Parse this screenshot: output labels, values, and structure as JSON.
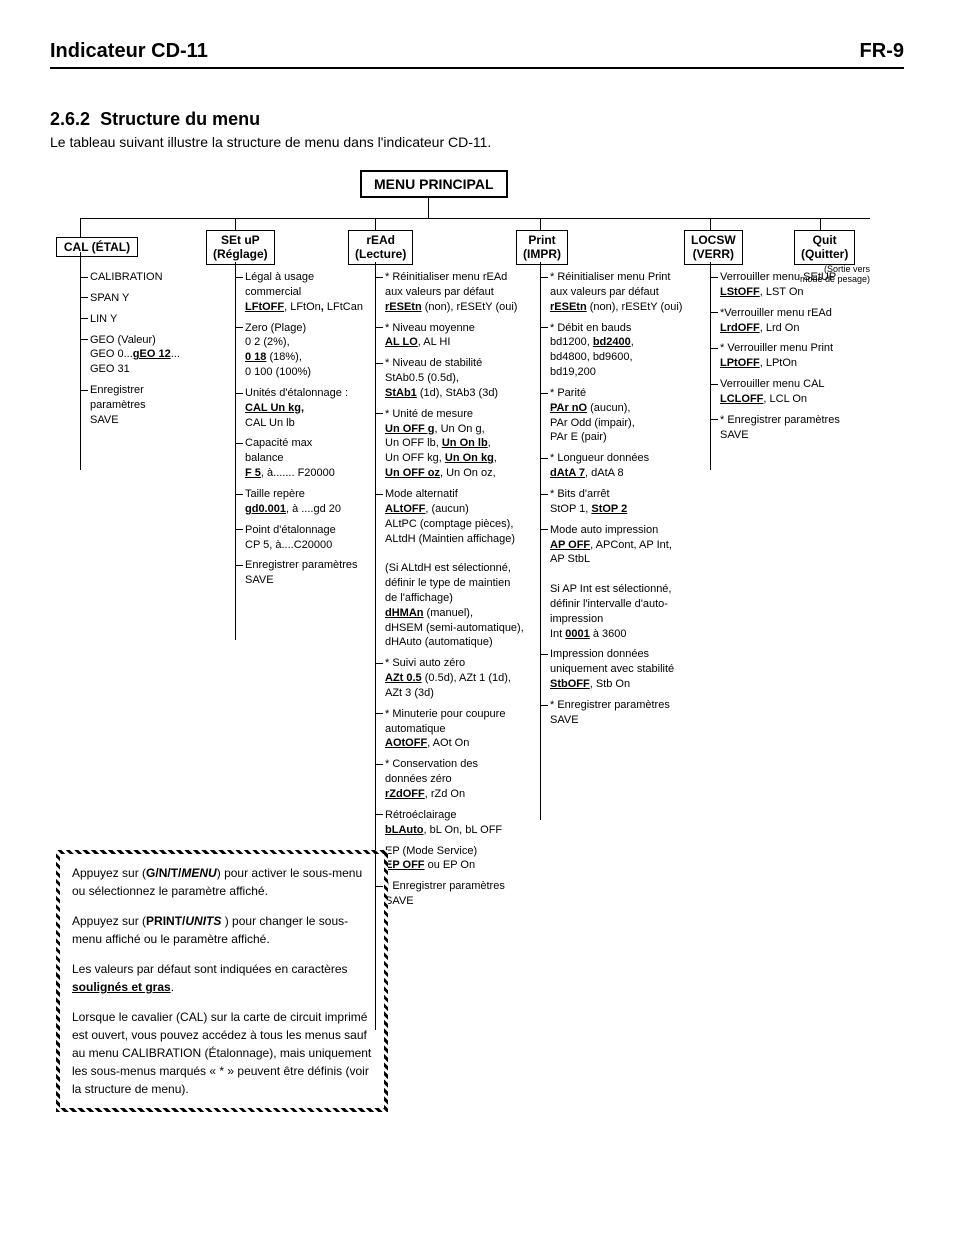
{
  "header": {
    "left": "Indicateur CD-11",
    "right": "FR-9"
  },
  "section_num": "2.6.2",
  "section_title": "Structure du menu",
  "intro": "Le tableau suivant illustre la structure de menu dans l'indicateur CD-11.",
  "root": "MENU PRINCIPAL",
  "menus": {
    "cal": {
      "l1": "CAL (ÉTAL)",
      "l2": ""
    },
    "setup": {
      "l1": "SEt uP",
      "l2": "(Réglage)"
    },
    "read": {
      "l1": "rEAd",
      "l2": "(Lecture)"
    },
    "print": {
      "l1": "Print",
      "l2": "(IMPR)"
    },
    "locsw": {
      "l1": "LOCSW",
      "l2": "(VERR)"
    },
    "quit": {
      "l1": "Quit",
      "l2": "(Quitter)"
    }
  },
  "quit_sub": "(Sortie vers\nmode de pesage)",
  "cal_items": [
    "CALIBRATION",
    "SPAN Y",
    "LIN Y",
    "GEO (Valeur)\nGEO 0...<bu>gEO 12</bu>...\nGEO 31",
    "Enregistrer\nparamètres\nSAVE"
  ],
  "setup_items": [
    "Légal à usage\ncommercial\n<bu>LFtOFF</bu>, LFtOn<b>,</b> LFtCan",
    "Zero (Plage)\n0 2 (2%),\n<bu>0 18</bu> (18%),\n0 100 (100%)",
    "Unités d'étalonnage :\n<bu>CAL Un kg,</bu>\nCAL Un lb",
    "Capacité max\nbalance\n<bu>F 5</bu>, à....... F20000",
    "Taille repère\n<bu>gd0.001</bu>, à ....gd 20",
    "Point d'étalonnage\nCP 5, à....C20000",
    "Enregistrer paramètres\nSAVE"
  ],
  "read_items": [
    "* Réinitialiser menu rEAd\naux valeurs par défaut\n<bu>rESEtn</bu> (non), rESEtY (oui)",
    "* Niveau moyenne\n<bu>AL LO</bu>, AL HI",
    "* Niveau de stabilité\nStAb0.5 (0.5d),\n<bu>StAb1</bu> (1d), StAb3 (3d)",
    "* Unité de mesure\n<bu>Un OFF g</bu>, Un On g,\nUn OFF lb, <bu>Un On lb</bu>,\nUn OFF kg, <bu>Un On kg</bu>,\n<bu>Un OFF oz</bu>, Un On oz,",
    "Mode alternatif\n<bu>ALtOFF</bu>, (aucun)\nALtPC (comptage pièces),\nALtdH (Maintien affichage)\n\n(Si ALtdH est sélectionné,\ndéfinir le type de maintien\nde l'affichage)\n<bu>dHMAn</bu> (manuel),\ndHSEM (semi-automatique),\ndHAuto (automatique)",
    "* Suivi auto zéro\n<bu>AZt 0.5</bu> (0.5d), AZt 1 (1d),\nAZt 3 (3d)",
    "* Minuterie pour coupure\nautomatique\n<bu>AOtOFF</bu>, AOt On",
    "* Conservation des\ndonnées zéro\n<bu>rZdOFF</bu>, rZd On",
    "Rétroéclairage\n<bu>bLAuto</bu>, bL On, bL OFF",
    "EP (Mode Service)\n<bu>EP OFF</bu> ou EP On",
    "* Enregistrer paramètres\n  SAVE"
  ],
  "print_items": [
    "* Réinitialiser menu Print\naux valeurs par défaut\n<bu>rESEtn</bu> (non), rESEtY (oui)",
    "* Débit en bauds\nbd1200, <bu>bd2400</bu>,\nbd4800, bd9600,\nbd19,200",
    "* Parité\n<bu>PAr nO</bu> (aucun),\nPAr Odd (impair),\nPAr E (pair)",
    "* Longueur données\n<bu>dAtA 7</bu>, dAtA 8",
    "* Bits d'arrêt\nStOP 1, <bu>StOP 2</bu>",
    "Mode auto impression\n<bu>AP OFF</bu>, APCont, AP Int,\nAP StbL\n\nSi AP Int est sélectionné,\ndéfinir l'intervalle d'auto-\nimpression\nInt <bu>0001</bu> à 3600",
    "Impression données\nuniquement avec stabilité\n<bu>StbOFF</bu>, Stb On",
    "* Enregistrer paramètres\n  SAVE"
  ],
  "locsw_items": [
    "Verrouiller menu SEtUP\n<bu>LStOFF</bu>, LST On",
    "*Verrouiller menu rEAd\n<bu>LrdOFF</bu>, Lrd On",
    "* Verrouiller menu Print\n<bu>LPtOFF</bu>, LPtOn",
    "Verrouiller menu CAL\n<bu>LCLOFF</bu>, LCL On",
    "* Enregistrer paramètres\n  SAVE"
  ],
  "note": [
    "Appuyez sur (<b>G/N/T/<bi>MENU</bi></b>) pour activer le sous-menu ou sélectionnez le paramètre affiché.",
    "Appuyez sur (<b>PRINT/<bi>UNITS</bi></b> ) pour changer le sous-menu affiché ou le paramètre affiché.",
    "Les valeurs par défaut sont indiquées en caractères <bu>soulignés et gras</bu>.",
    "Lorsque le cavalier (CAL) sur la carte de circuit imprimé est ouvert, vous pouvez accédez à tous les menus sauf au menu CALIBRATION (Étalonnage), mais uniquement les sous-menus marqués « * » peuvent être définis (voir la structure de menu)."
  ]
}
